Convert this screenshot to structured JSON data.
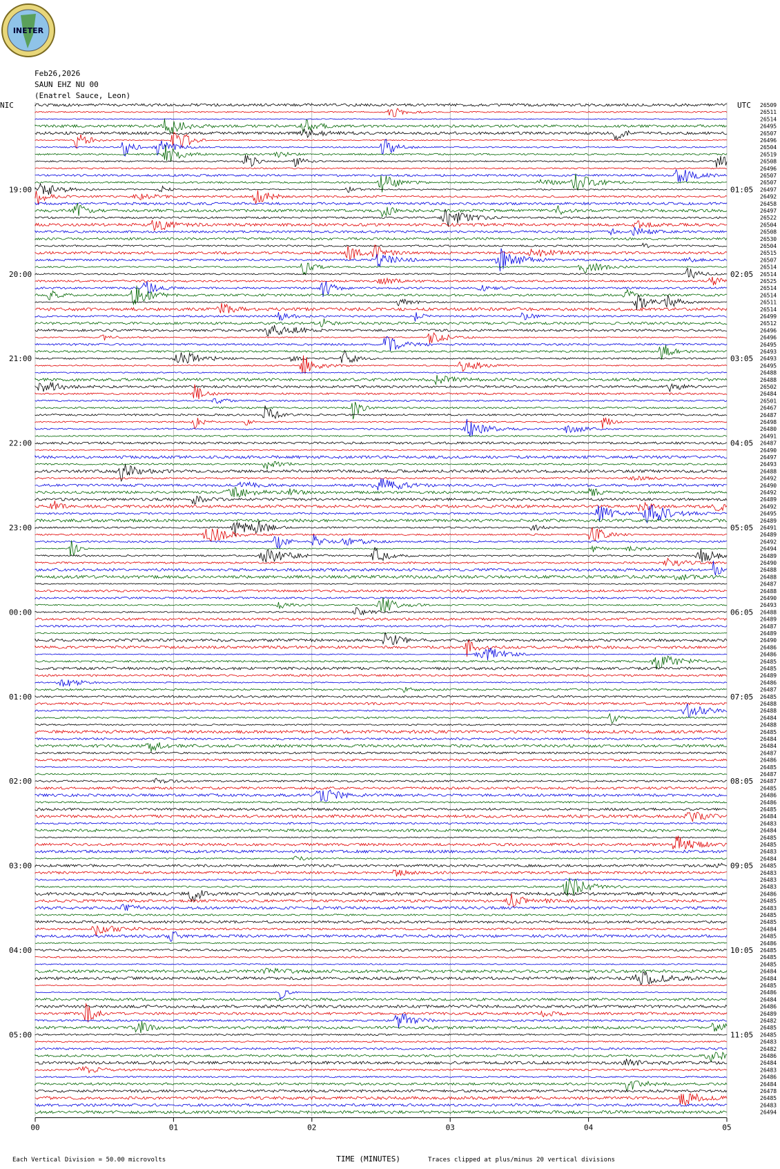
{
  "logo": "INETER",
  "header": {
    "date": "Feb26,2026",
    "station": "SAUN EHZ NU 00",
    "location": "(Enatrel Sauce, Leon)"
  },
  "left_zone": "NIC",
  "right_zone": "UTC",
  "left_times": [
    "19:00",
    "20:00",
    "21:00",
    "22:00",
    "23:00",
    "00:00",
    "01:00",
    "02:00",
    "03:00",
    "04:00",
    "05:00"
  ],
  "right_times": [
    "01:05",
    "02:05",
    "03:05",
    "04:05",
    "05:05",
    "06:05",
    "07:05",
    "08:05",
    "09:05",
    "10:05",
    "11:05"
  ],
  "trace_numbers": [
    26509,
    26511,
    26514,
    26495,
    26507,
    26496,
    26504,
    26519,
    26508,
    26496,
    26507,
    26507,
    26497,
    26492,
    26458,
    26497,
    26522,
    26504,
    26508,
    26530,
    26504,
    26515,
    26507,
    26514,
    26514,
    26525,
    26514,
    26514,
    26511,
    26514,
    26499,
    26512,
    26496,
    26496,
    26495,
    26493,
    26493,
    26495,
    26488,
    26488,
    26502,
    26484,
    26501,
    26467,
    26487,
    26498,
    26480,
    26491,
    26487,
    26490,
    26497,
    26493,
    26488,
    26492,
    26490,
    26492,
    26489,
    26492,
    26495,
    26489,
    26491,
    26489,
    26492,
    26494,
    26489,
    26490,
    26488,
    26488,
    26487,
    26488,
    26490,
    26493,
    26488,
    26489,
    26487,
    26489,
    26490,
    26486,
    26486,
    26485,
    26485,
    26489,
    26486,
    26487,
    26485,
    26488,
    26488,
    26484,
    26488,
    26485,
    26484,
    26484,
    26487,
    26486,
    26485,
    26487,
    26487,
    26485,
    26486,
    26486,
    26485,
    26484,
    26483,
    26484,
    26485,
    26485,
    26483,
    26484,
    26485,
    26483,
    26483,
    26483,
    26486,
    26485,
    26483,
    26485,
    26485,
    26484,
    26485,
    26486,
    26485,
    26485,
    26485,
    26484,
    26484,
    26485,
    26486,
    26484,
    26486,
    26489,
    26482,
    26485,
    26485,
    26483,
    26482,
    26486,
    26484,
    26483,
    26486,
    26484,
    26478,
    26485,
    26483,
    26494
  ],
  "x_axis": {
    "labels": [
      "00",
      "01",
      "02",
      "03",
      "04",
      "05"
    ],
    "title": "TIME (MINUTES)"
  },
  "footer": {
    "scale": "Each Vertical Division =    50.00 microvolts",
    "clip": "Traces clipped at plus/minus 20 vertical divisions"
  }
}
